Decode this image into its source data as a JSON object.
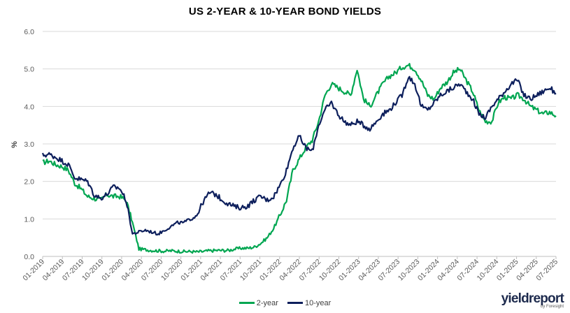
{
  "colors": {
    "two_year": "#00a651",
    "ten_year": "#0d1f5c",
    "grid": "#d9d9d9",
    "axis": "#bfbfbf"
  },
  "brand": {
    "main": "yieldreport",
    "sub": "by Foresight"
  },
  "chart_data": {
    "type": "line",
    "title": "US 2-YEAR & 10-YEAR BOND YIELDS",
    "ylabel": "%",
    "xlabel": "",
    "ylim": [
      0,
      6
    ],
    "y_ticks": [
      "0.0",
      "1.0",
      "2.0",
      "3.0",
      "4.0",
      "5.0",
      "6.0"
    ],
    "x_ticks": [
      "01-2019",
      "04-2019",
      "07-2019",
      "10-2019",
      "01-2020",
      "04-2020",
      "07-2020",
      "10-2020",
      "01-2021",
      "04-2021",
      "07-2021",
      "10-2021",
      "01-2022",
      "04-2022",
      "07-2022",
      "10-2022",
      "01-2023",
      "04-2023",
      "07-2023",
      "10-2023",
      "01-2024",
      "04-2024",
      "07-2024",
      "10-2024",
      "01-2025",
      "04-2025",
      "07-2025"
    ],
    "grid": "horizontal",
    "legend_position": "bottom",
    "series": [
      {
        "name": "2-year",
        "color": "#00a651",
        "values": [
          2.5,
          2.55,
          2.45,
          2.4,
          2.3,
          1.95,
          1.8,
          1.6,
          1.55,
          1.5,
          1.65,
          1.6,
          1.6,
          1.5,
          0.9,
          0.2,
          0.18,
          0.16,
          0.15,
          0.14,
          0.15,
          0.14,
          0.13,
          0.13,
          0.12,
          0.13,
          0.15,
          0.16,
          0.16,
          0.16,
          0.2,
          0.22,
          0.22,
          0.25,
          0.35,
          0.5,
          0.75,
          1.1,
          1.5,
          2.3,
          2.6,
          2.9,
          3.1,
          3.6,
          4.3,
          4.6,
          4.5,
          4.4,
          4.3,
          5.0,
          4.2,
          4.0,
          4.3,
          4.6,
          4.8,
          4.9,
          5.05,
          5.1,
          5.0,
          4.7,
          4.3,
          4.2,
          4.5,
          4.65,
          4.9,
          5.0,
          4.7,
          4.4,
          3.9,
          3.6,
          3.6,
          4.1,
          4.25,
          4.2,
          4.3,
          4.2,
          4.0,
          3.9,
          3.8,
          3.85,
          3.75
        ]
      },
      {
        "name": "10-year",
        "color": "#0d1f5c",
        "values": [
          2.7,
          2.72,
          2.65,
          2.55,
          2.45,
          2.1,
          2.05,
          2.0,
          1.65,
          1.55,
          1.65,
          1.85,
          1.82,
          1.5,
          0.6,
          0.65,
          0.7,
          0.65,
          0.6,
          0.7,
          0.8,
          0.9,
          0.9,
          1.0,
          1.1,
          1.45,
          1.7,
          1.65,
          1.5,
          1.4,
          1.32,
          1.3,
          1.35,
          1.5,
          1.6,
          1.5,
          1.6,
          1.9,
          2.3,
          2.9,
          3.2,
          2.9,
          2.8,
          3.5,
          3.9,
          4.1,
          3.8,
          3.6,
          3.5,
          3.6,
          3.5,
          3.4,
          3.6,
          3.8,
          3.9,
          4.1,
          4.3,
          4.8,
          4.6,
          4.0,
          3.9,
          4.1,
          4.3,
          4.4,
          4.5,
          4.6,
          4.4,
          4.2,
          3.8,
          3.7,
          4.0,
          4.2,
          4.4,
          4.6,
          4.7,
          4.3,
          4.2,
          4.3,
          4.4,
          4.5,
          4.35
        ]
      }
    ]
  }
}
